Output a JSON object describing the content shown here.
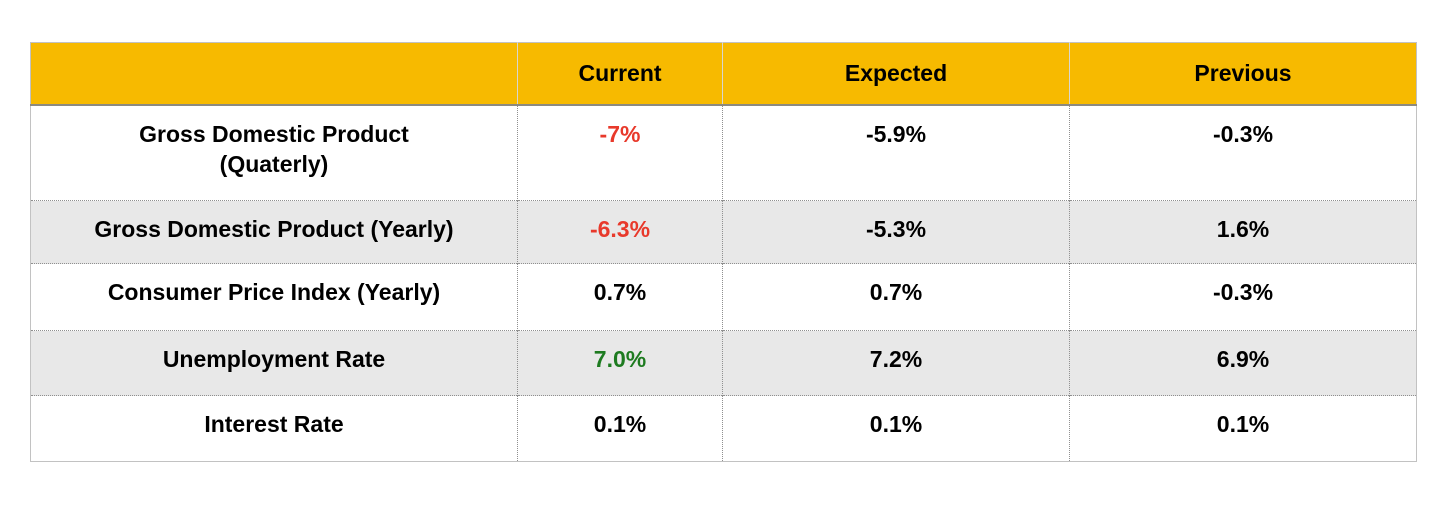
{
  "colors": {
    "header_bg": "#f7ba00",
    "row_alt_bg": "#e8e8e8",
    "negative": "#e8392b",
    "positive": "#1e7b20",
    "text": "#000000"
  },
  "table": {
    "header": {
      "metric": "",
      "current": "Current",
      "expected": "Expected",
      "previous": "Previous"
    },
    "rows": [
      {
        "label": "Gross Domestic Product",
        "label_line2": "(Quaterly)",
        "current": "-7%",
        "current_color": "#e8392b",
        "expected": "-5.9%",
        "previous": "-0.3%"
      },
      {
        "label": "Gross Domestic Product (Yearly)",
        "current": "-6.3%",
        "current_color": "#e8392b",
        "expected": "-5.3%",
        "previous": "1.6%"
      },
      {
        "label": "Consumer Price Index (Yearly)",
        "current": "0.7%",
        "current_color": "#000000",
        "expected": "0.7%",
        "previous": "-0.3%"
      },
      {
        "label": "Unemployment Rate",
        "current": "7.0%",
        "current_color": "#1e7b20",
        "expected": "7.2%",
        "previous": "6.9%"
      },
      {
        "label": "Interest Rate",
        "current": "0.1%",
        "current_color": "#000000",
        "expected": "0.1%",
        "previous": "0.1%"
      }
    ]
  },
  "chart_data": {
    "type": "table",
    "columns": [
      "",
      "Current",
      "Expected",
      "Previous"
    ],
    "rows": [
      [
        "Gross Domestic Product (Quaterly)",
        "-7%",
        "-5.9%",
        "-0.3%"
      ],
      [
        "Gross Domestic Product (Yearly)",
        "-6.3%",
        "-5.3%",
        "1.6%"
      ],
      [
        "Consumer Price Index (Yearly)",
        "0.7%",
        "0.7%",
        "-0.3%"
      ],
      [
        "Unemployment Rate",
        "7.0%",
        "7.2%",
        "6.9%"
      ],
      [
        "Interest Rate",
        "0.1%",
        "0.1%",
        "0.1%"
      ]
    ],
    "value_colors": {
      "Gross Domestic Product (Quaterly) Current": "#e8392b",
      "Gross Domestic Product (Yearly) Current": "#e8392b",
      "Unemployment Rate Current": "#1e7b20"
    }
  }
}
